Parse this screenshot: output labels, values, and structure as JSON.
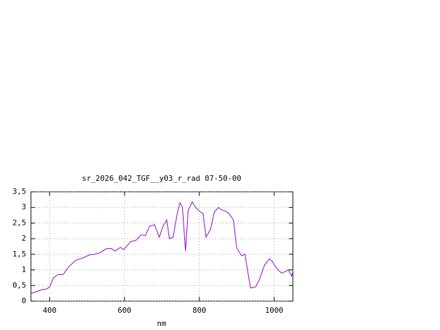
{
  "chart_data": {
    "type": "line",
    "title": "sr_2026_042_TGF__y03_r_rad 07-50-00",
    "xlabel": "nm",
    "x": [
      350,
      360,
      370,
      380,
      390,
      400,
      410,
      423,
      436,
      451,
      469,
      488,
      506,
      520,
      534,
      552,
      565,
      575,
      589,
      598,
      616,
      631,
      644,
      656,
      667,
      680,
      693,
      703,
      713,
      720,
      730,
      740,
      748,
      755,
      763,
      770,
      781,
      790,
      800,
      810,
      818,
      830,
      840,
      851,
      860,
      870,
      880,
      891,
      900,
      913,
      922,
      930,
      937,
      950,
      961,
      974,
      987,
      995,
      1001,
      1010,
      1020,
      1030,
      1038,
      1047,
      1050
    ],
    "series": [
      {
        "name": "sr_2026_042_TGF__y03_r_rad 07-50-00",
        "color": "#9400d3",
        "values": [
          0.25,
          0.28,
          0.33,
          0.37,
          0.38,
          0.45,
          0.75,
          0.85,
          0.85,
          1.1,
          1.3,
          1.38,
          1.48,
          1.5,
          1.55,
          1.68,
          1.68,
          1.6,
          1.72,
          1.65,
          1.9,
          1.95,
          2.12,
          2.1,
          2.4,
          2.45,
          2.05,
          2.4,
          2.6,
          2.0,
          2.05,
          2.75,
          3.15,
          3.0,
          1.6,
          2.9,
          3.18,
          3.0,
          2.88,
          2.8,
          2.05,
          2.3,
          2.85,
          3.0,
          2.92,
          2.88,
          2.8,
          2.6,
          1.7,
          1.45,
          1.5,
          0.9,
          0.42,
          0.45,
          0.7,
          1.15,
          1.35,
          1.28,
          1.15,
          1.0,
          0.9,
          0.95,
          1.0,
          0.8,
          0.95
        ]
      }
    ],
    "xlim": [
      350,
      1050
    ],
    "ylim": [
      0,
      3.5
    ],
    "xticks": [
      400,
      600,
      800,
      1000
    ],
    "yticks": [
      0,
      {
        "value": 0.5,
        "label": "0,5"
      },
      1,
      {
        "value": 1.5,
        "label": "1,5"
      },
      2,
      {
        "value": 2.5,
        "label": "2,5"
      },
      3,
      {
        "value": 3.5,
        "label": "3,5"
      }
    ],
    "grid": true
  }
}
